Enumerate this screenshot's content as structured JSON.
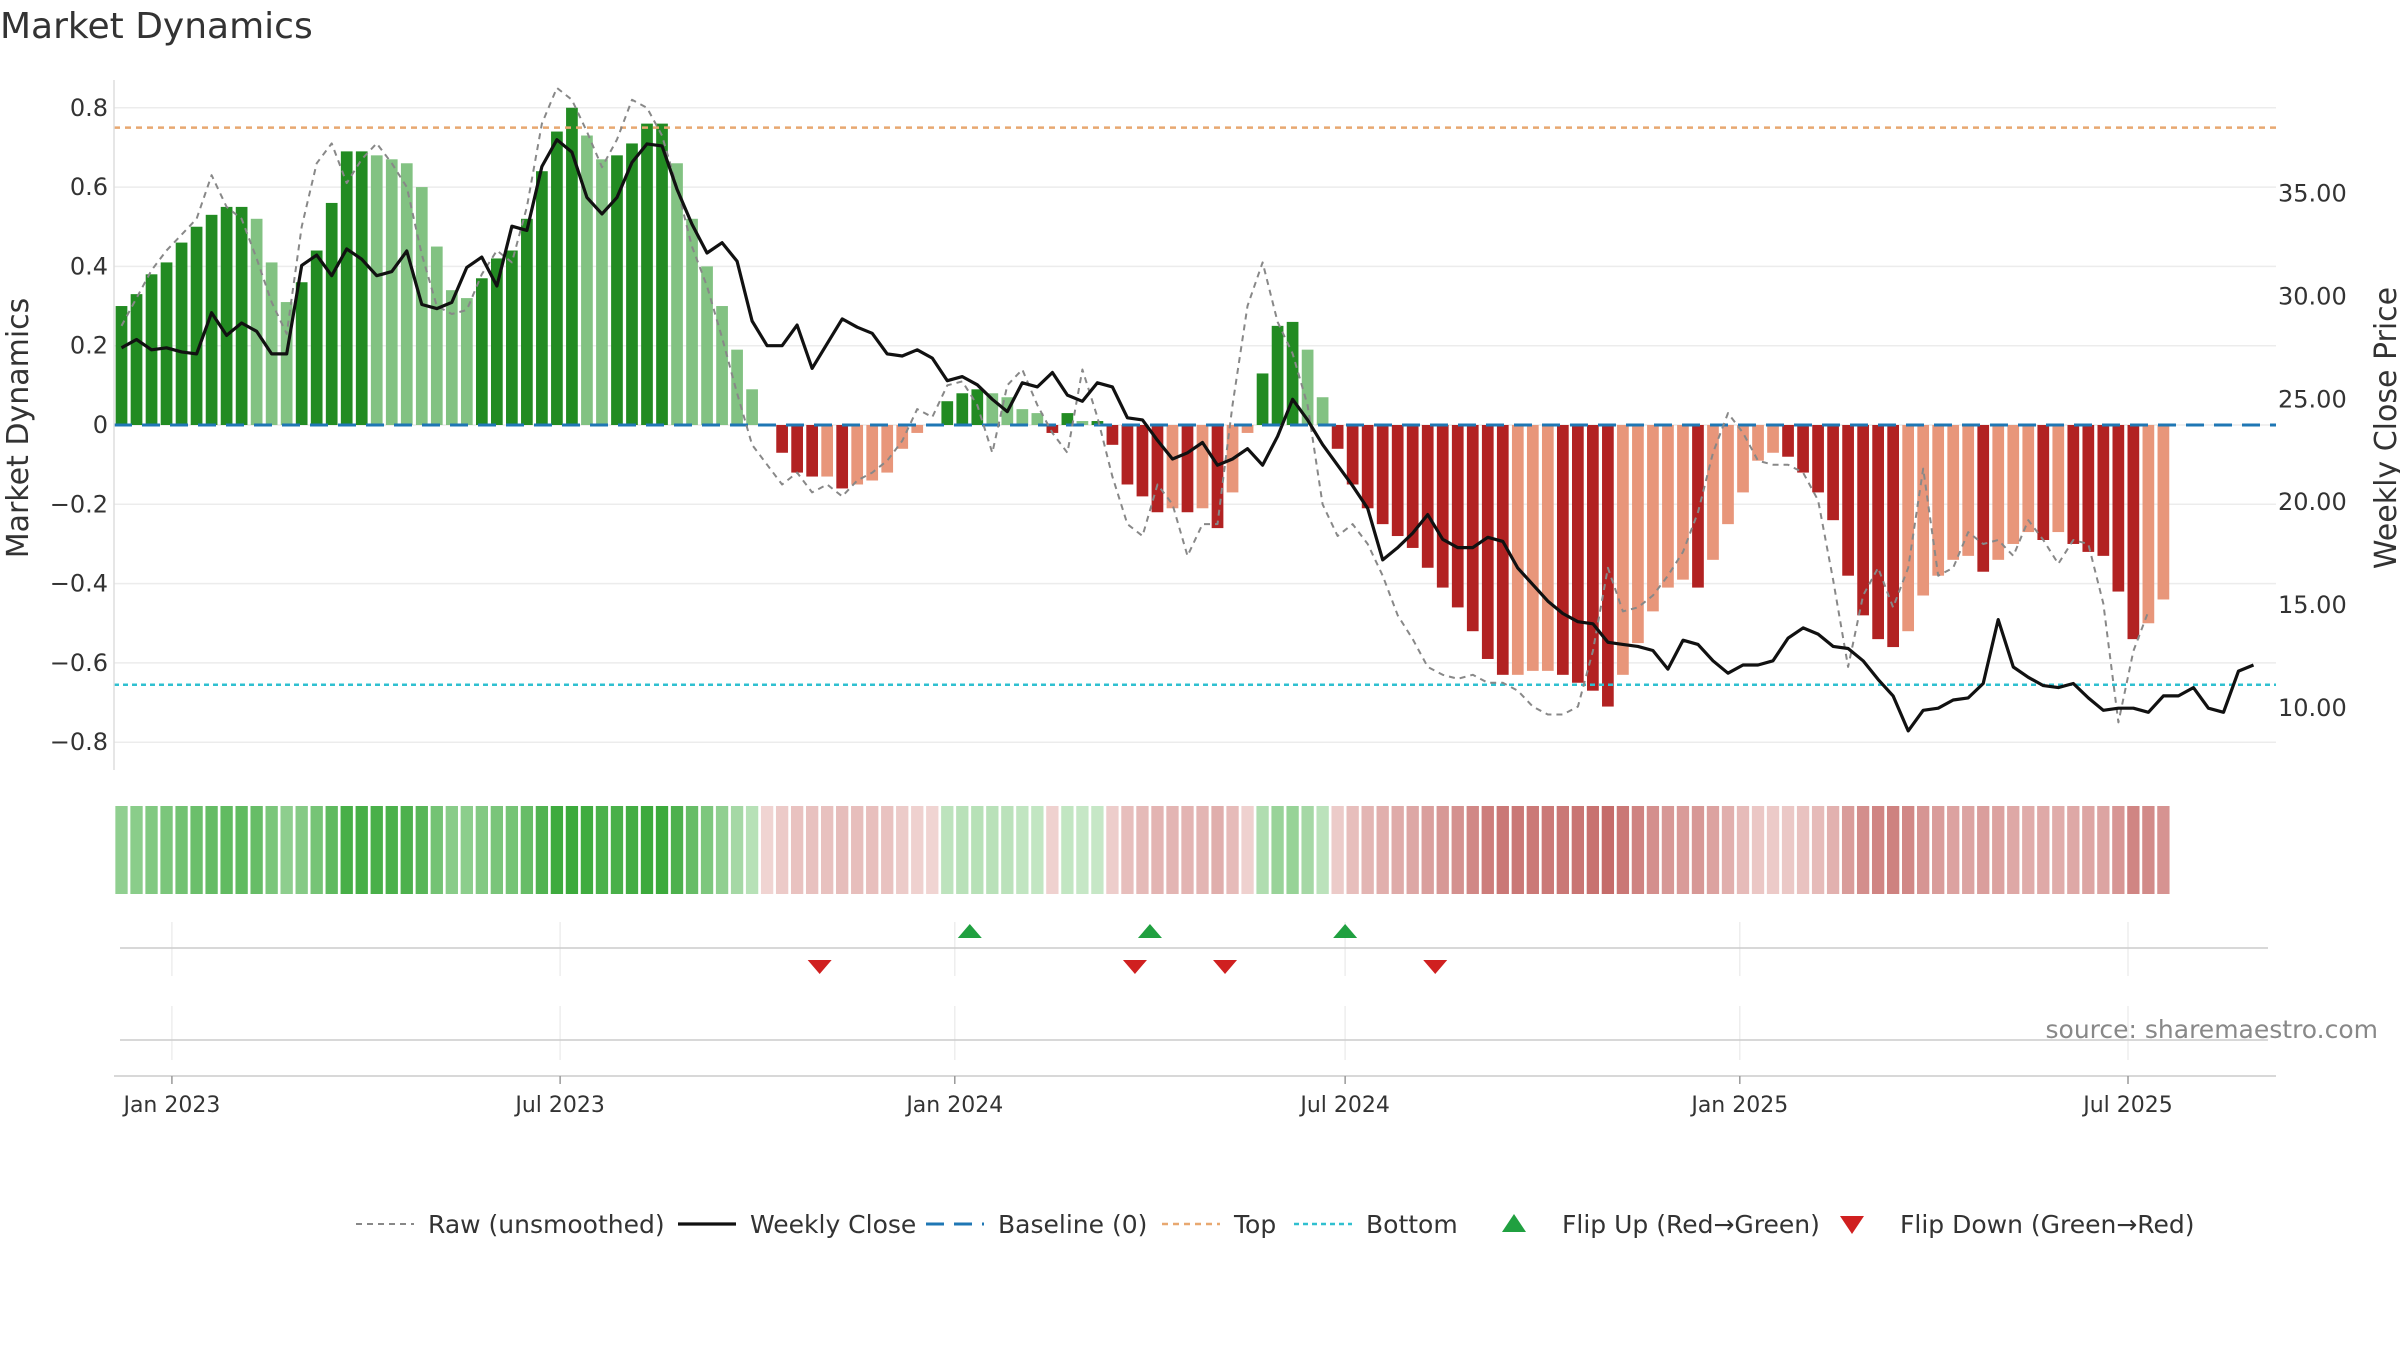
{
  "chart_data": {
    "type": "bar",
    "title": "Market Dynamics",
    "ylabel": "Market Dynamics",
    "y2label": "Weekly Close Price",
    "source_text": "source: sharemaestro.com",
    "ylim": [
      -0.87,
      0.87
    ],
    "y2lim": [
      7.0,
      40.5
    ],
    "yticks": [
      -0.8,
      -0.6,
      -0.4,
      -0.2,
      0,
      0.2,
      0.4,
      0.6,
      0.8
    ],
    "ytick_labels": [
      "−0.8",
      "−0.6",
      "−0.4",
      "−0.2",
      "0",
      "0.2",
      "0.4",
      "0.6",
      "0.8"
    ],
    "y2ticks": [
      10,
      15,
      20,
      25,
      30,
      35
    ],
    "y2tick_labels": [
      "10.00",
      "15.00",
      "20.00",
      "25.00",
      "30.00",
      "35.00"
    ],
    "x_range": [
      "2022-12-05",
      "2025-09-08"
    ],
    "xticks": [
      "2023-01-01",
      "2023-07-01",
      "2024-01-01",
      "2024-07-01",
      "2025-01-01",
      "2025-07-01"
    ],
    "xtick_labels": [
      "Jan 2023",
      "Jul 2023",
      "Jan 2024",
      "Jul 2024",
      "Jan 2025",
      "Jul 2025"
    ],
    "top_line": 0.75,
    "bottom_line": -0.655,
    "baseline": 0,
    "start_date": "2022-12-05",
    "week_days": 7,
    "momentum": [
      0.3,
      0.33,
      0.38,
      0.41,
      0.46,
      0.5,
      0.53,
      0.55,
      0.55,
      0.52,
      0.41,
      0.31,
      0.36,
      0.44,
      0.56,
      0.69,
      0.69,
      0.68,
      0.67,
      0.66,
      0.6,
      0.45,
      0.34,
      0.32,
      0.37,
      0.42,
      0.44,
      0.52,
      0.64,
      0.74,
      0.8,
      0.73,
      0.67,
      0.68,
      0.71,
      0.76,
      0.76,
      0.66,
      0.52,
      0.4,
      0.3,
      0.19,
      0.09,
      0.0,
      -0.07,
      -0.12,
      -0.13,
      -0.13,
      -0.16,
      -0.15,
      -0.14,
      -0.12,
      -0.06,
      -0.02,
      0.0,
      0.06,
      0.08,
      0.09,
      0.08,
      0.07,
      0.04,
      0.03,
      -0.02,
      0.03,
      0.01,
      0.01,
      -0.05,
      -0.15,
      -0.18,
      -0.22,
      -0.21,
      -0.22,
      -0.21,
      -0.26,
      -0.17,
      -0.02,
      0.13,
      0.25,
      0.26,
      0.19,
      0.07,
      -0.06,
      -0.15,
      -0.21,
      -0.25,
      -0.28,
      -0.31,
      -0.36,
      -0.41,
      -0.46,
      -0.52,
      -0.59,
      -0.63,
      -0.63,
      -0.62,
      -0.62,
      -0.63,
      -0.65,
      -0.67,
      -0.71,
      -0.63,
      -0.55,
      -0.47,
      -0.41,
      -0.39,
      -0.41,
      -0.34,
      -0.25,
      -0.17,
      -0.09,
      -0.07,
      -0.08,
      -0.12,
      -0.17,
      -0.24,
      -0.38,
      -0.48,
      -0.54,
      -0.56,
      -0.52,
      -0.43,
      -0.38,
      -0.34,
      -0.33,
      -0.37,
      -0.34,
      -0.3,
      -0.27,
      -0.29,
      -0.27,
      -0.3,
      -0.32,
      -0.33,
      -0.42,
      -0.54,
      -0.5,
      -0.44
    ],
    "series": [
      {
        "name": "Raw (unsmoothed)",
        "style": "dashed",
        "color": "#888888",
        "values": [
          0.25,
          0.32,
          0.39,
          0.44,
          0.48,
          0.52,
          0.63,
          0.55,
          0.52,
          0.42,
          0.31,
          0.23,
          0.5,
          0.66,
          0.71,
          0.61,
          0.67,
          0.71,
          0.66,
          0.6,
          0.43,
          0.3,
          0.28,
          0.29,
          0.38,
          0.44,
          0.41,
          0.55,
          0.76,
          0.85,
          0.82,
          0.74,
          0.65,
          0.72,
          0.82,
          0.8,
          0.73,
          0.6,
          0.45,
          0.35,
          0.22,
          0.08,
          -0.05,
          -0.1,
          -0.15,
          -0.12,
          -0.17,
          -0.15,
          -0.18,
          -0.14,
          -0.12,
          -0.09,
          -0.04,
          0.04,
          0.02,
          0.1,
          0.11,
          0.05,
          -0.07,
          0.1,
          0.14,
          0.05,
          -0.02,
          -0.07,
          0.14,
          0.02,
          -0.13,
          -0.25,
          -0.28,
          -0.15,
          -0.2,
          -0.33,
          -0.25,
          -0.25,
          0.05,
          0.3,
          0.41,
          0.26,
          0.18,
          0.05,
          -0.2,
          -0.28,
          -0.25,
          -0.3,
          -0.38,
          -0.48,
          -0.54,
          -0.61,
          -0.63,
          -0.64,
          -0.63,
          -0.65,
          -0.65,
          -0.67,
          -0.71,
          -0.73,
          -0.73,
          -0.71,
          -0.57,
          -0.36,
          -0.47,
          -0.46,
          -0.43,
          -0.38,
          -0.32,
          -0.22,
          -0.07,
          0.03,
          -0.02,
          -0.09,
          -0.1,
          -0.1,
          -0.12,
          -0.19,
          -0.39,
          -0.61,
          -0.43,
          -0.36,
          -0.46,
          -0.36,
          -0.11,
          -0.38,
          -0.36,
          -0.27,
          -0.3,
          -0.29,
          -0.33,
          -0.24,
          -0.29,
          -0.35,
          -0.29,
          -0.3,
          -0.45,
          -0.75,
          -0.57,
          -0.47
        ]
      },
      {
        "name": "Weekly Close",
        "style": "solid",
        "color": "#111111",
        "axis": "right",
        "values": [
          27.5,
          27.9,
          27.4,
          27.5,
          27.3,
          27.2,
          29.2,
          28.1,
          28.7,
          28.3,
          27.2,
          27.2,
          31.5,
          32.0,
          31.0,
          32.3,
          31.8,
          31.0,
          31.2,
          32.2,
          29.6,
          29.4,
          29.7,
          31.4,
          31.9,
          30.5,
          33.4,
          33.2,
          36.3,
          37.6,
          37.0,
          34.8,
          34.0,
          34.8,
          36.5,
          37.4,
          37.3,
          35.2,
          33.5,
          32.1,
          32.6,
          31.7,
          28.8,
          27.6,
          27.6,
          28.6,
          26.5,
          27.7,
          28.9,
          28.5,
          28.2,
          27.2,
          27.1,
          27.4,
          27.0,
          25.9,
          26.1,
          25.7,
          25.0,
          24.4,
          25.8,
          25.6,
          26.3,
          25.2,
          24.9,
          25.8,
          25.6,
          24.1,
          24.0,
          23.0,
          22.1,
          22.4,
          22.9,
          21.8,
          22.1,
          22.6,
          21.8,
          23.2,
          25.0,
          24.0,
          22.8,
          21.8,
          20.8,
          19.7,
          17.2,
          17.8,
          18.5,
          19.4,
          18.2,
          17.8,
          17.8,
          18.3,
          18.1,
          16.8,
          16.0,
          15.2,
          14.6,
          14.2,
          14.1,
          13.2,
          13.1,
          13.0,
          12.8,
          11.9,
          13.3,
          13.1,
          12.3,
          11.7,
          12.1,
          12.1,
          12.3,
          13.4,
          13.9,
          13.6,
          13.0,
          12.9,
          12.3,
          11.4,
          10.6,
          8.9,
          9.9,
          10.0,
          10.4,
          10.5,
          11.2,
          14.3,
          12.0,
          11.5,
          11.1,
          11.0,
          11.2,
          10.5,
          9.9,
          10.0,
          10.0,
          9.8,
          10.6,
          10.6,
          11.0,
          10.0,
          9.8,
          11.8,
          12.1
        ]
      }
    ],
    "flip_up_dates": [
      "2024-01-08",
      "2024-04-01",
      "2024-07-01"
    ],
    "flip_down_dates": [
      "2023-10-30",
      "2024-03-25",
      "2024-05-06",
      "2024-08-12"
    ],
    "colors": {
      "green_strong": "#228b22",
      "green_light": "#82c282",
      "red_strong": "#b22222",
      "red_light": "#e8967a",
      "top_line": "#e8a870",
      "bottom_line": "#30c0d0",
      "baseline": "#1f77b4",
      "flip_up": "#20a040",
      "flip_down": "#d02020"
    },
    "legend_position": "bottom-center",
    "legend": [
      {
        "key": "raw",
        "label": "Raw (unsmoothed)"
      },
      {
        "key": "close",
        "label": "Weekly Close"
      },
      {
        "key": "baseline",
        "label": "Baseline (0)"
      },
      {
        "key": "top",
        "label": "Top"
      },
      {
        "key": "bottom",
        "label": "Bottom"
      },
      {
        "key": "flipup",
        "label": "Flip Up (Red→Green)"
      },
      {
        "key": "flipdown",
        "label": "Flip Down (Green→Red)"
      }
    ]
  }
}
